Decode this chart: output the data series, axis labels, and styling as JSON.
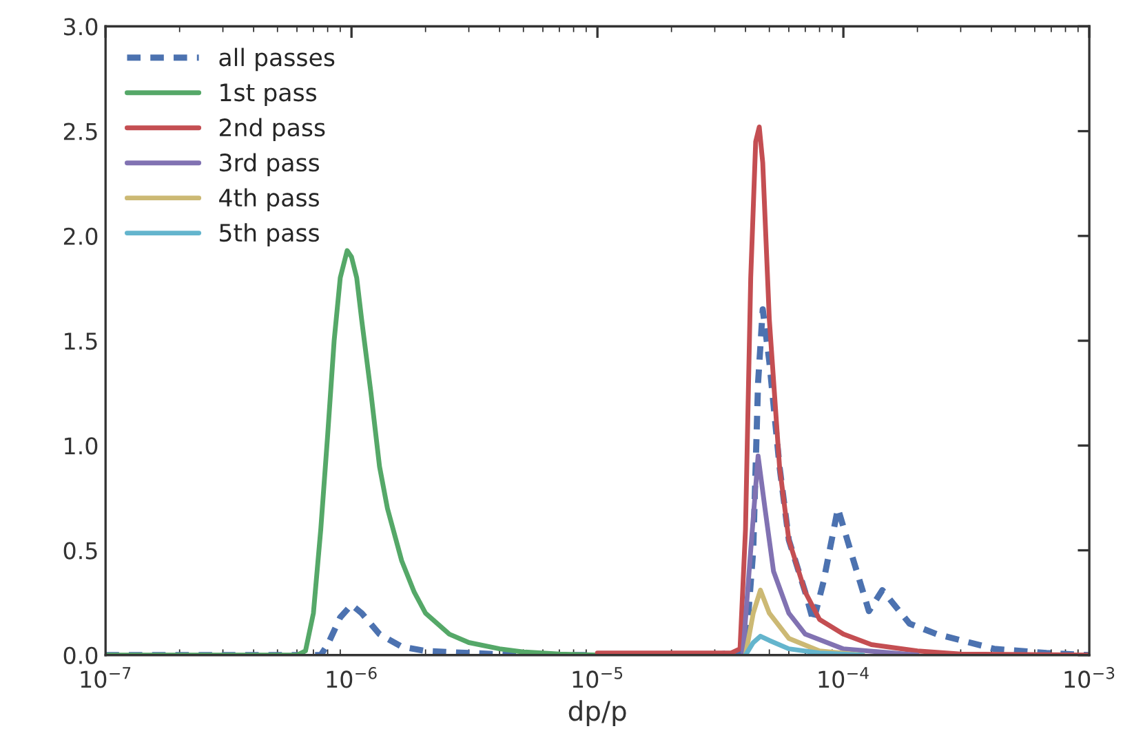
{
  "chart_data": {
    "type": "line",
    "xlabel": "dp/p",
    "log": "x",
    "grid": false,
    "legend": "top left",
    "xlim": [
      1e-07,
      0.001
    ],
    "xticks": [
      {
        "value": 1e-07,
        "label": "10$^{−7}$"
      },
      {
        "value": 1e-06,
        "label": "10$^{−6}$"
      },
      {
        "value": 1e-05,
        "label": "10$^{−5}$"
      },
      {
        "value": 0.0001,
        "label": "10$^{−4}$"
      },
      {
        "value": 0.001,
        "label": "10$^{−3}$"
      }
    ],
    "ylim": [
      0,
      3
    ],
    "yticks": [
      {
        "value": 0,
        "label": "0.0"
      },
      {
        "value": 0.5,
        "label": "0.5"
      },
      {
        "value": 1,
        "label": "1.0"
      },
      {
        "value": 1.5,
        "label": "1.5"
      },
      {
        "value": 2,
        "label": "2.0"
      },
      {
        "value": 2.5,
        "label": "2.5"
      },
      {
        "value": 3,
        "label": "3.0"
      }
    ],
    "series": [
      {
        "name": "all passes",
        "color": "#4c72b0",
        "line_style": "dashed",
        "x": [
          1e-07,
          7.5e-07,
          8e-07,
          9e-07,
          1e-06,
          1.1e-06,
          1.3e-06,
          1.6e-06,
          2e-06,
          3e-06,
          5e-06,
          1e-05,
          3e-05,
          4e-05,
          4.3e-05,
          4.5e-05,
          4.7e-05,
          5e-05,
          5.5e-05,
          6e-05,
          7e-05,
          7.55e-05,
          8.3e-05,
          9.5e-05,
          0.00011,
          0.000127,
          0.000144,
          0.000186,
          0.00024,
          0.00041,
          0.00067,
          0.001
        ],
        "values": [
          0,
          0,
          0.05,
          0.18,
          0.24,
          0.2,
          0.1,
          0.04,
          0.02,
          0.01,
          0,
          0,
          0,
          0.02,
          0.5,
          1.3,
          1.65,
          1.4,
          0.9,
          0.55,
          0.3,
          0.16,
          0.35,
          0.7,
          0.45,
          0.21,
          0.31,
          0.15,
          0.1,
          0.03,
          0.01,
          0
        ]
      },
      {
        "name": "1st pass",
        "color": "#55a868",
        "line_style": "solid",
        "x": [
          1e-07,
          6e-07,
          6.5e-07,
          7e-07,
          7.5e-07,
          8e-07,
          8.5e-07,
          9e-07,
          9.6e-07,
          1e-06,
          1.05e-06,
          1.1e-06,
          1.2e-06,
          1.3e-06,
          1.4e-06,
          1.6e-06,
          1.8e-06,
          2e-06,
          2.5e-06,
          3e-06,
          4e-06,
          5e-06,
          7e-06,
          1e-05
        ],
        "values": [
          0,
          0,
          0.02,
          0.2,
          0.6,
          1.05,
          1.5,
          1.8,
          1.93,
          1.9,
          1.8,
          1.6,
          1.25,
          0.9,
          0.7,
          0.45,
          0.3,
          0.2,
          0.1,
          0.06,
          0.03,
          0.015,
          0.005,
          0
        ]
      },
      {
        "name": "2nd pass",
        "color": "#c44e52",
        "line_style": "solid",
        "x": [
          1e-05,
          3.5e-05,
          3.8e-05,
          4e-05,
          4.2e-05,
          4.4e-05,
          4.55e-05,
          4.7e-05,
          5e-05,
          5.5e-05,
          6e-05,
          7e-05,
          8e-05,
          0.0001,
          0.00013,
          0.0002,
          0.0003,
          0.001
        ],
        "values": [
          0.01,
          0.01,
          0.03,
          0.6,
          1.8,
          2.45,
          2.52,
          2.35,
          1.6,
          0.9,
          0.55,
          0.3,
          0.17,
          0.1,
          0.05,
          0.02,
          0.005,
          0
        ]
      },
      {
        "name": "3rd pass",
        "color": "#8172b2",
        "line_style": "solid",
        "x": [
          3.9e-05,
          4.2e-05,
          4.5e-05,
          4.8e-05,
          5.2e-05,
          6e-05,
          7e-05,
          0.0001,
          0.0002
        ],
        "values": [
          0,
          0.5,
          0.95,
          0.7,
          0.4,
          0.2,
          0.1,
          0.03,
          0
        ]
      },
      {
        "name": "4th pass",
        "color": "#ccb974",
        "line_style": "solid",
        "x": [
          4e-05,
          4.3e-05,
          4.6e-05,
          5e-05,
          6e-05,
          8e-05,
          0.00012
        ],
        "values": [
          0,
          0.2,
          0.31,
          0.2,
          0.08,
          0.02,
          0
        ]
      },
      {
        "name": "5th pass",
        "color": "#64b5cd",
        "line_style": "solid",
        "x": [
          4e-05,
          4.3e-05,
          4.6e-05,
          5e-05,
          6e-05,
          8e-05,
          0.00012
        ],
        "values": [
          0,
          0.06,
          0.09,
          0.07,
          0.03,
          0.01,
          0
        ]
      }
    ]
  }
}
